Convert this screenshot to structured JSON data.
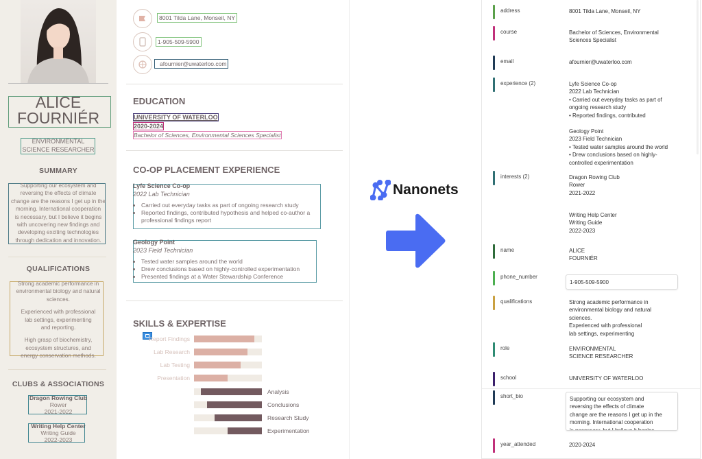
{
  "resume": {
    "name_line1": "ALICE",
    "name_line2": "FOURNIÉR",
    "role_line1": "ENVIRONMENTAL",
    "role_line2": "SCIENCE RESEARCHER",
    "summary_heading": "SUMMARY",
    "summary_lines": [
      "Supporting our ecosystem and",
      "reversing the effects of climate",
      "change are the reasons I get up in the",
      "morning. International cooperation",
      "is necessary, but I believe it begins",
      "with uncovering new findings and",
      "developing exciting technologies",
      "through dedication and  innovation."
    ],
    "qualifications_heading": "QUALIFICATIONS",
    "qualifications_lines": [
      "Strong academic performance in",
      "environmental biology and natural",
      "sciences.",
      "",
      "Experienced with professional",
      "lab settings, experimenting",
      "and reporting.",
      "",
      "High grasp of biochemistry,",
      "ecosystem structures, and",
      "energy conservation methods."
    ],
    "clubs_heading": "CLUBS & ASSOCIATIONS",
    "clubs": [
      {
        "name": "Dragon Rowing Club",
        "role": "Rower",
        "years": "2021-2022"
      },
      {
        "name": "Writing Help Center",
        "role": "Writing Guide",
        "years": "2022-2023"
      }
    ],
    "contact": {
      "address": "8001 Tilda Lane, Monseil, NY",
      "phone": "1-905-509-5900",
      "email": "afournier@uwaterloo.com",
      "address_icon": "flag-icon",
      "phone_icon": "phone-icon",
      "email_icon": "globe-icon"
    },
    "education": {
      "heading": "EDUCATION",
      "school": "UNIVERSITY OF WATERLOO",
      "years": "2020-2024",
      "course": "Bachelor of Sciences, Environmental Sciences Specialist"
    },
    "experience": {
      "heading": "CO-OP PLACEMENT EXPERIENCE",
      "items": [
        {
          "company": "Lyfe Science Co-op",
          "title": "2022 Lab Technician",
          "bullets": [
            "Carried out everyday tasks as part of ongoing research study",
            "Reported findings, contributed hypothesis and helped co-author a professional findings report"
          ]
        },
        {
          "company": "Geology Point",
          "title": "2023 Field Technician",
          "bullets": [
            "Tested water samples around the world",
            "Drew conclusions based on highly-controlled experimentation",
            "Presented findings at a Water Stewardship Conference"
          ]
        }
      ]
    },
    "skills": {
      "heading": "SKILLS & EXPERTISE",
      "left": [
        {
          "label": "Report Findings",
          "level": 0.89
        },
        {
          "label": "Lab Research",
          "level": 0.79
        },
        {
          "label": "Lab Testing",
          "level": 0.69
        },
        {
          "label": "Presentation",
          "level": 0.49
        }
      ],
      "right": [
        {
          "label": "Analysis",
          "level": 0.9
        },
        {
          "label": "Conclusions",
          "level": 0.81
        },
        {
          "label": "Research Study",
          "level": 0.7
        },
        {
          "label": "Experimentation",
          "level": 0.51
        }
      ],
      "left_color": "#dcb0a5",
      "right_color": "#735a5f"
    }
  },
  "brand": {
    "name": "Nanonets",
    "color": "#4a6cf2",
    "arrow_icon": "arrow-right-icon"
  },
  "fields": [
    {
      "key": "address",
      "value": "8001 Tilda Lane, Monseil, NY",
      "color": "#5aa04a"
    },
    {
      "key": "course",
      "value": "Bachelor of Sciences, Environmental\nSciences Specialist",
      "color": "#c0307a"
    },
    {
      "key": "email",
      "value": "afournier@uwaterloo.com",
      "color": "#1f3a55"
    },
    {
      "key": "experience (2)",
      "value": "Lyfe Science Co-op\n2022 Lab Technician\n• Carried out everyday tasks as part of\nongoing research study\n• Reported findings, contributed",
      "value2": "Geology Point\n2023 Field Technician\n• Tested water samples around the world\n• Drew conclusions based on highly-\ncontrolled experimentation",
      "color": "#2f6f73"
    },
    {
      "key": "interests (2)",
      "value": "Dragon Rowing Club\nRower\n2021-2022",
      "value2": "Writing Help Center\nWriting Guide\n2022-2023",
      "color": "#2f6f73"
    },
    {
      "key": "name",
      "value": "ALICE\nFOURNIÉR",
      "color": "#2e6b3a"
    },
    {
      "key": "phone_number",
      "value": "1-905-509-5900",
      "color": "#4caf50"
    },
    {
      "key": "qualifications",
      "value": "Strong academic performance in\nenvironmental biology and natural\nsciences.\nExperienced with professional\nlab settings, experimenting",
      "color": "#c9a040"
    },
    {
      "key": "role",
      "value": "ENVIRONMENTAL\nSCIENCE RESEARCHER",
      "color": "#2e8b73"
    },
    {
      "key": "school",
      "value": "UNIVERSITY OF WATERLOO",
      "color": "#3a1f6b"
    },
    {
      "key": "short_bio",
      "value": "Supporting our ecosystem and\nreversing the effects of climate\nchange are the reasons I get up in the\nmorning. International cooperation\nis necessary, but I believe it begins",
      "color": "#1f3a55"
    },
    {
      "key": "year_attended",
      "value": "2020-2024",
      "color": "#c0307a"
    }
  ]
}
